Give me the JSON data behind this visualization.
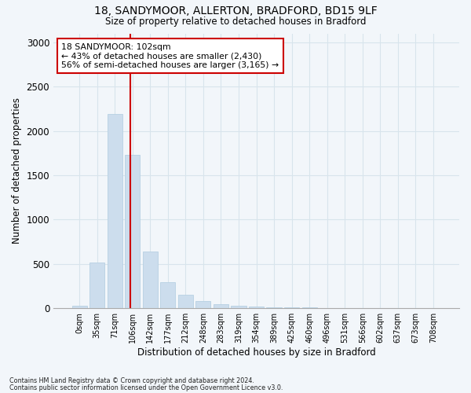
{
  "title_line1": "18, SANDYMOOR, ALLERTON, BRADFORD, BD15 9LF",
  "title_line2": "Size of property relative to detached houses in Bradford",
  "xlabel": "Distribution of detached houses by size in Bradford",
  "ylabel": "Number of detached properties",
  "bar_color": "#ccdded",
  "bar_edge_color": "#b0cce0",
  "grid_color": "#d8e4ec",
  "vline_color": "#cc0000",
  "annotation_text": "18 SANDYMOOR: 102sqm\n← 43% of detached houses are smaller (2,430)\n56% of semi-detached houses are larger (3,165) →",
  "annotation_box_color": "#ffffff",
  "annotation_box_edge": "#cc0000",
  "categories": [
    "0sqm",
    "35sqm",
    "71sqm",
    "106sqm",
    "142sqm",
    "177sqm",
    "212sqm",
    "248sqm",
    "283sqm",
    "319sqm",
    "354sqm",
    "389sqm",
    "425sqm",
    "460sqm",
    "496sqm",
    "531sqm",
    "566sqm",
    "602sqm",
    "637sqm",
    "673sqm",
    "708sqm"
  ],
  "values": [
    25,
    520,
    2190,
    1730,
    640,
    290,
    155,
    80,
    45,
    30,
    20,
    15,
    10,
    8,
    5,
    3,
    2,
    2,
    1,
    1,
    1
  ],
  "ylim": [
    0,
    3100
  ],
  "yticks": [
    0,
    500,
    1000,
    1500,
    2000,
    2500,
    3000
  ],
  "footer_line1": "Contains HM Land Registry data © Crown copyright and database right 2024.",
  "footer_line2": "Contains public sector information licensed under the Open Government Licence v3.0.",
  "bg_color": "#f2f6fa",
  "plot_bg_color": "#f2f6fa"
}
